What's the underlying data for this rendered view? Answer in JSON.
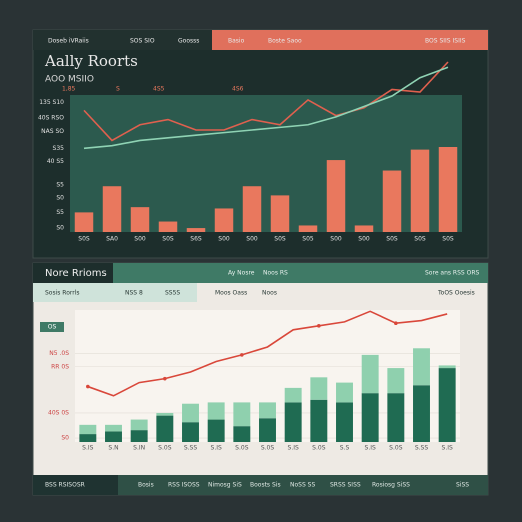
{
  "top_panel": {
    "header": [
      "Doseb iVRaiis",
      "SOS SIO",
      "Goosss",
      "Basio",
      "Boste Saoo",
      "BOS SIIS ISIIS"
    ]
  },
  "bottom_panel": {
    "header": "Nore Rrioms",
    "bar": [
      "Ay Nosre",
      "Noos RS",
      "Sore ans RSS ORS"
    ],
    "subheader": [
      "Sosis Rorrls",
      "NSS 8",
      "SS5S",
      "Moos Oass",
      "Noos",
      "ToOS Ooesis"
    ],
    "badge": "OS",
    "footer": [
      "BSS RSISOSR",
      "Bosis",
      "RSS ISOSS",
      "Nimosg SiS",
      "Boosts Sis",
      "NoSS SS",
      "SRSS SISS",
      "Rosiosg SiSS",
      "SiSS"
    ]
  },
  "chart_data": [
    {
      "type": "bar_line",
      "title": "Aally Roorts",
      "subtitle": "AOO MSIIO",
      "annotations": [
        "1,85",
        "S",
        "4S5",
        "4S6"
      ],
      "categories": [
        "S0S",
        "SA0",
        "S00",
        "S0S",
        "S6S",
        "S00",
        "S00",
        "S0S",
        "S05",
        "S00",
        "S00",
        "S0S",
        "S0S",
        "S0S"
      ],
      "series": [
        {
          "type": "bar",
          "color": "#e9785e",
          "values": [
            15,
            35,
            19,
            8,
            3,
            18,
            35,
            28,
            5,
            55,
            5,
            47,
            63,
            65
          ]
        },
        {
          "type": "line",
          "color": "#e0604e",
          "values": [
            93,
            70,
            82,
            86,
            78,
            78,
            86,
            82,
            101,
            89,
            95,
            109,
            107,
            130
          ]
        },
        {
          "type": "line",
          "color": "#8fd3b4",
          "values": [
            64,
            66,
            70,
            72,
            74,
            76,
            78,
            80,
            82,
            88,
            96,
            104,
            118,
            126
          ]
        }
      ],
      "ylim": [
        0,
        130
      ],
      "yticks": [
        {
          "value": 3,
          "label": "S0"
        },
        {
          "value": 15,
          "label": "S5"
        },
        {
          "value": 26,
          "label": "S0"
        },
        {
          "value": 36,
          "label": "S5"
        },
        {
          "value": 54,
          "label": "40 S5"
        },
        {
          "value": 64,
          "label": "S35"
        },
        {
          "value": 77,
          "label": "NAS SO"
        },
        {
          "value": 87,
          "label": "40S RSO"
        },
        {
          "value": 99,
          "label": "135 S10"
        }
      ],
      "grid": false
    },
    {
      "type": "stacked_bar_line",
      "categories": [
        "S.IS",
        "S.N",
        "S.IN",
        "S.0S",
        "S.SS",
        "S.IS",
        "S.0S",
        "S.0S",
        "S.IS",
        "S.0S",
        "S.S",
        "S.IS",
        "S.0S",
        "S.SS",
        "S.IS"
      ],
      "series": [
        {
          "type": "bar",
          "color": "#1f6b52",
          "values": [
            6,
            8,
            9,
            20,
            15,
            17,
            12,
            18,
            30,
            32,
            30,
            37,
            37,
            43,
            56
          ]
        },
        {
          "type": "bar",
          "color": "#8fd0ae",
          "values": [
            7,
            5,
            8,
            2,
            14,
            13,
            18,
            12,
            11,
            17,
            15,
            29,
            19,
            28,
            2
          ]
        },
        {
          "type": "line",
          "color": "#d9473a",
          "values": [
            42,
            35,
            45,
            48,
            53,
            61,
            66,
            72,
            85,
            88,
            91,
            99,
            90,
            92,
            97
          ]
        }
      ],
      "ylim": [
        0,
        100
      ],
      "yticks": [
        {
          "value": 3,
          "label": "S0"
        },
        {
          "value": 22,
          "label": "40S 0S"
        },
        {
          "value": 57,
          "label": "RR 0S"
        },
        {
          "value": 67,
          "label": "N5 .0S"
        }
      ],
      "grid": true
    }
  ]
}
